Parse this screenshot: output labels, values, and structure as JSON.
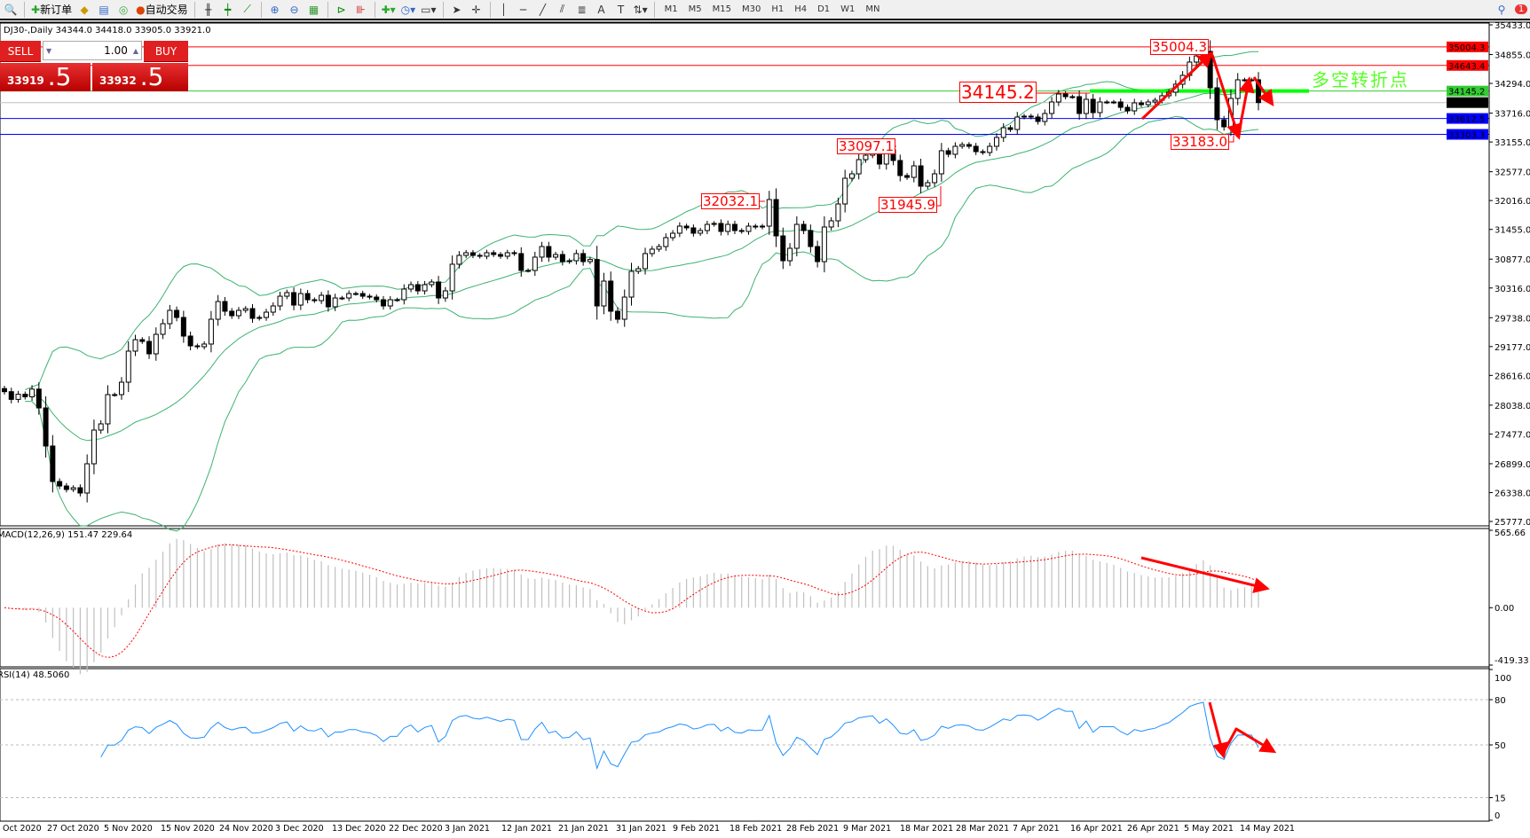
{
  "toolbar": {
    "new_order": "新订单",
    "auto_trading": "自动交易",
    "timeframes": [
      "M1",
      "M5",
      "M15",
      "M30",
      "H1",
      "H4",
      "D1",
      "W1",
      "MN"
    ],
    "notification_count": "1"
  },
  "symbol_info": "DJ30-,Daily  34344.0 34418.0 33905.0 33921.0",
  "one_click": {
    "sell_label": "SELL",
    "buy_label": "BUY",
    "lot": "1.00",
    "sell_price_small": "33919",
    "sell_price_big": ".5",
    "buy_price_small": "33932",
    "buy_price_big": ".5"
  },
  "price_axis": [
    "35433.0",
    "34855.0",
    "34294.0",
    "33716.0",
    "33155.0",
    "32577.0",
    "32016.0",
    "31455.0",
    "30877.0",
    "30316.0",
    "29738.0",
    "29177.0",
    "28616.0",
    "28038.0",
    "27477.0",
    "26899.0",
    "26338.0",
    "25777.0"
  ],
  "price_levels": [
    {
      "value": "35004.3",
      "color": "#ff0000",
      "bg": "#ff0000"
    },
    {
      "value": "34643.4",
      "color": "#ff0000",
      "bg": "#ff0000"
    },
    {
      "value": "34145.2",
      "color": "#33cc33",
      "bg": "#33cc33"
    },
    {
      "value": "33921.0",
      "color": "#c0c0c0",
      "bg": "#000000"
    },
    {
      "value": "33612.5",
      "color": "#0000ff",
      "bg": "#0000ff"
    },
    {
      "value": "33303.3",
      "color": "#0000ff",
      "bg": "#0000ff"
    }
  ],
  "annotations": {
    "high": "35004.3",
    "pivot": "34145.2",
    "a": "33097.1",
    "b": "32032.1",
    "c": "31945.9",
    "low": "33183.0",
    "pivot_text": "多空转折点"
  },
  "macd": {
    "label": "MACD(12,26,9) 151.47 229.64",
    "axis": [
      "565.66",
      "0.00",
      "-419.33"
    ],
    "max": 565.66,
    "min": -419.33
  },
  "rsi": {
    "label": "RSI(14) 48.5060",
    "axis": [
      "100",
      "80",
      "50",
      "15",
      "0"
    ],
    "levels": [
      80,
      50,
      15
    ]
  },
  "dates": [
    "Oct 2020",
    "27 Oct 2020",
    "5 Nov 2020",
    "15 Nov 2020",
    "24 Nov 2020",
    "3 Dec 2020",
    "13 Dec 2020",
    "22 Dec 2020",
    "3 Jan 2021",
    "12 Jan 2021",
    "21 Jan 2021",
    "31 Jan 2021",
    "9 Feb 2021",
    "18 Feb 2021",
    "28 Feb 2021",
    "9 Mar 2021",
    "18 Mar 2021",
    "28 Mar 2021",
    "7 Apr 2021",
    "16 Apr 2021",
    "26 Apr 2021",
    "5 May 2021",
    "14 May 2021"
  ],
  "chart_data": {
    "type": "candlestick",
    "symbol": "DJ30-",
    "timeframe": "Daily",
    "ylim": [
      25777,
      35433
    ],
    "indicators": [
      "Bollinger Bands (20,2)",
      "MACD(12,26,9)",
      "RSI(14)"
    ],
    "colors": {
      "bands": "#3cb371",
      "macd_hist": "#c0c0c0",
      "macd_signal": "#ff0000",
      "rsi": "#1e90ff",
      "arrows": "#ff0000",
      "pivot_line": "#00ff00"
    },
    "close": [
      28300,
      28150,
      28250,
      28200,
      28350,
      27984,
      27243,
      26553,
      26466,
      26398,
      26432,
      26329,
      26898,
      27553,
      27674,
      28243,
      28243,
      28484,
      29088,
      29311,
      29277,
      29036,
      29415,
      29622,
      29881,
      29743,
      29381,
      29191,
      29174,
      29226,
      29708,
      30053,
      29864,
      29777,
      29881,
      29915,
      29726,
      29743,
      29846,
      29967,
      30156,
      30226,
      29984,
      30208,
      30088,
      30070,
      30174,
      29950,
      30122,
      30122,
      30208,
      30208,
      30156,
      30139,
      30088,
      29967,
      30088,
      30088,
      30295,
      30381,
      30260,
      30381,
      30433,
      30122,
      30260,
      30778,
      30950,
      31002,
      30950,
      30933,
      31002,
      30967,
      30933,
      31002,
      30985,
      30657,
      30657,
      30916,
      31122,
      30916,
      30967,
      30829,
      30846,
      30985,
      30829,
      30870,
      29967,
      30450,
      29864,
      29708,
      30139,
      30640,
      30691,
      30985,
      31071,
      31122,
      31295,
      31381,
      31519,
      31485,
      31381,
      31433,
      31553,
      31571,
      31416,
      31553,
      31433,
      31416,
      31519,
      31502,
      31519,
      32036,
      31329,
      30846,
      31088,
      31553,
      31433,
      31122,
      30829,
      31502,
      31622,
      31950,
      32450,
      32536,
      32812,
      32898,
      32967,
      32726,
      33002,
      32795,
      32502,
      32467,
      32691,
      32295,
      32364,
      32536,
      32985,
      32916,
      33071,
      33105,
      33071,
      32967,
      32950,
      33071,
      33243,
      33433,
      33398,
      33640,
      33657,
      33640,
      33554,
      33709,
      33933,
      34088,
      34036,
      34036,
      33709,
      33985,
      33726,
      33933,
      33933,
      33933,
      33829,
      33760,
      33916,
      33881,
      33933,
      33967,
      34054,
      34123,
      34278,
      34450,
      34709,
      34829,
      34916,
      34209,
      33588,
      33450,
      34002,
      34364,
      34364,
      34364,
      33921
    ]
  }
}
